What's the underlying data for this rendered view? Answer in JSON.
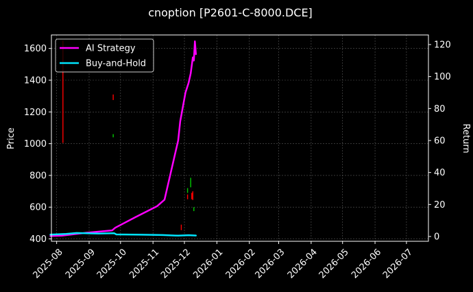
{
  "chart_data": {
    "type": "line",
    "title": "cnoption [P2601-C-8000.DCE]",
    "ylabel": "Price",
    "y2label": "Return",
    "background": "#000000",
    "grid": true,
    "legend_position": "top-left",
    "x_ticks": [
      "2025-08",
      "2025-09",
      "2025-10",
      "2025-11",
      "2025-12",
      "2026-01",
      "2026-02",
      "2026-03",
      "2026-04",
      "2026-05",
      "2026-06",
      "2026-07"
    ],
    "x_range": [
      "2025-07-27",
      "2026-07-22"
    ],
    "ylim": [
      385,
      1685
    ],
    "y_ticks": [
      400,
      600,
      800,
      1000,
      1200,
      1400,
      1600
    ],
    "y2lim": [
      -3,
      126
    ],
    "y2_ticks": [
      0,
      20,
      40,
      60,
      80,
      100,
      120
    ],
    "series": [
      {
        "name": "AI Strategy",
        "axis": "right",
        "color": "#ff00ff",
        "points": [
          [
            "2025-07-26",
            0.3
          ],
          [
            "2025-08-06",
            0.5
          ],
          [
            "2025-08-14",
            1.2
          ],
          [
            "2025-09-01",
            2.5
          ],
          [
            "2025-09-23",
            3.8
          ],
          [
            "2025-09-26",
            5.5
          ],
          [
            "2025-10-15",
            12
          ],
          [
            "2025-11-05",
            19
          ],
          [
            "2025-11-12",
            23
          ],
          [
            "2025-11-25",
            60
          ],
          [
            "2025-11-27",
            72
          ],
          [
            "2025-12-02",
            90
          ],
          [
            "2025-12-05",
            96
          ],
          [
            "2025-12-07",
            102
          ],
          [
            "2025-12-09",
            112
          ],
          [
            "2025-12-10",
            110
          ],
          [
            "2025-12-11",
            122
          ],
          [
            "2025-12-12",
            114
          ]
        ]
      },
      {
        "name": "Buy-and-Hold",
        "axis": "right",
        "color": "#00e5ff",
        "points": [
          [
            "2025-07-26",
            1.2
          ],
          [
            "2025-08-10",
            1.6
          ],
          [
            "2025-08-20",
            2.2
          ],
          [
            "2025-09-10",
            1.8
          ],
          [
            "2025-09-25",
            2.0
          ],
          [
            "2025-09-27",
            1.3
          ],
          [
            "2025-10-20",
            1.1
          ],
          [
            "2025-11-10",
            0.9
          ],
          [
            "2025-11-25",
            0.5
          ],
          [
            "2025-12-05",
            0.8
          ],
          [
            "2025-12-12",
            0.6
          ]
        ]
      }
    ],
    "candles": [
      {
        "date": "2025-08-07",
        "low": 1005,
        "high": 1650,
        "color": "#ff0000"
      },
      {
        "date": "2025-09-24",
        "low": 1275,
        "high": 1310,
        "color": "#ff0000"
      },
      {
        "date": "2025-09-24",
        "low": 1040,
        "high": 1060,
        "color": "#00cc00"
      },
      {
        "date": "2025-11-28",
        "low": 455,
        "high": 490,
        "color": "#ff0000"
      },
      {
        "date": "2025-12-04",
        "low": 690,
        "high": 720,
        "color": "#00cc00"
      },
      {
        "date": "2025-12-04",
        "low": 650,
        "high": 680,
        "color": "#ff0000"
      },
      {
        "date": "2025-12-07",
        "low": 725,
        "high": 785,
        "color": "#00cc00"
      },
      {
        "date": "2025-12-08",
        "low": 650,
        "high": 690,
        "color": "#ff0000"
      },
      {
        "date": "2025-12-09",
        "low": 645,
        "high": 700,
        "color": "#ff0000"
      },
      {
        "date": "2025-12-10",
        "low": 575,
        "high": 600,
        "color": "#00cc00"
      }
    ]
  }
}
